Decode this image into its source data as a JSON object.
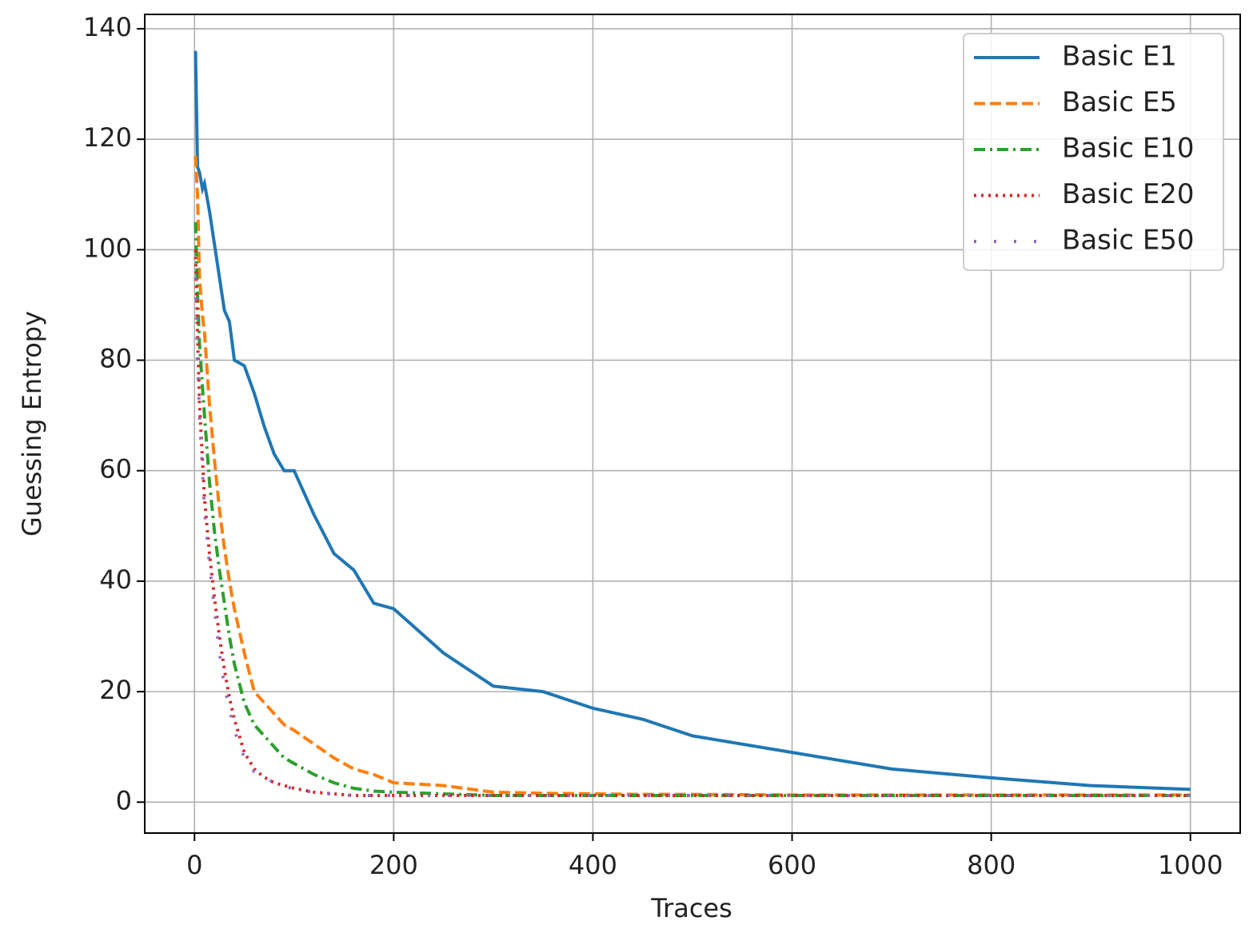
{
  "chart_data": {
    "type": "line",
    "xlabel": "Traces",
    "ylabel": "Guessing Entropy",
    "x": [
      1,
      3,
      5,
      8,
      10,
      15,
      20,
      25,
      30,
      35,
      40,
      50,
      60,
      70,
      80,
      90,
      100,
      120,
      140,
      160,
      180,
      200,
      250,
      300,
      350,
      400,
      450,
      500,
      600,
      700,
      800,
      900,
      1000
    ],
    "series": [
      {
        "name": "Basic E1",
        "color": "#1f77b4",
        "linestyle": "solid",
        "values": [
          136,
          115,
          114,
          111,
          112,
          107,
          101,
          95,
          89,
          87,
          80,
          79,
          74,
          68,
          63,
          60,
          60,
          52,
          45,
          42,
          36,
          35,
          27,
          21,
          20,
          17,
          15,
          12,
          9,
          6,
          4.4,
          3,
          2.3
        ]
      },
      {
        "name": "Basic E5",
        "color": "#ff7f0e",
        "linestyle": "dashed",
        "values": [
          117,
          110,
          95,
          88,
          85,
          72,
          62,
          53,
          46,
          40,
          35,
          27,
          20,
          18,
          16,
          14,
          13,
          10.5,
          8,
          6,
          5,
          3.5,
          3,
          1.8,
          1.6,
          1.5,
          1.4,
          1.4,
          1.3,
          1.3,
          1.3,
          1.3,
          1.3
        ]
      },
      {
        "name": "Basic E10",
        "color": "#2ca02c",
        "linestyle": "dashdot",
        "values": [
          105,
          92,
          83,
          75,
          70,
          58,
          49,
          42,
          36,
          30,
          25,
          18,
          14,
          12,
          10,
          8,
          7,
          5,
          3.5,
          2.5,
          2,
          1.8,
          1.5,
          1.2,
          1.2,
          1.2,
          1.2,
          1.2,
          1.2,
          1.2,
          1.2,
          1.2,
          1.2
        ]
      },
      {
        "name": "Basic E20",
        "color": "#d62728",
        "linestyle": "dotted",
        "values": [
          100,
          85,
          72,
          62,
          55,
          45,
          37,
          30,
          24,
          19,
          15,
          9,
          6,
          4.5,
          3.5,
          3,
          2.5,
          1.8,
          1.5,
          1.2,
          1.2,
          1.2,
          1.2,
          1.2,
          1.2,
          1.2,
          1.2,
          1.2,
          1.2,
          1.2,
          1.2,
          1.2,
          1.2
        ]
      },
      {
        "name": "Basic E50",
        "color": "#9467bd",
        "linestyle": "loosedot",
        "values": [
          95,
          80,
          70,
          60,
          53,
          43,
          35,
          27,
          21,
          17,
          13,
          8,
          5.5,
          4.5,
          3.5,
          3,
          2.3,
          1.8,
          1.4,
          1.2,
          1.2,
          1.2,
          1.2,
          1.2,
          1.2,
          1.2,
          1.2,
          1.2,
          1.2,
          1.2,
          1.2,
          1.2,
          1.2
        ]
      }
    ],
    "xlim": [
      -50,
      1050
    ],
    "ylim": [
      -5.6,
      142.6
    ],
    "xticks": [
      0,
      200,
      400,
      600,
      800,
      1000
    ],
    "yticks": [
      0,
      20,
      40,
      60,
      80,
      100,
      120,
      140
    ],
    "grid": true,
    "legend": "upper right"
  }
}
